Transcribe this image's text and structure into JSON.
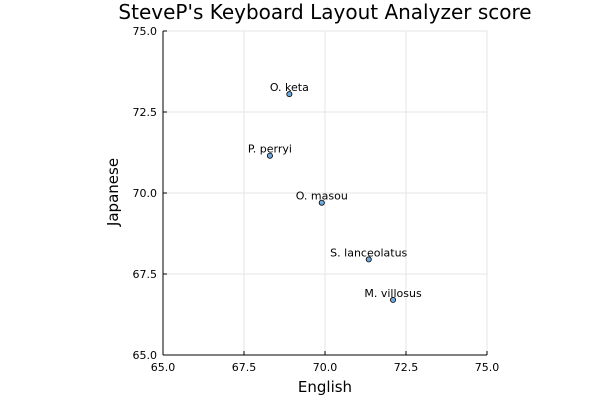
{
  "chart_data": {
    "type": "scatter",
    "title": "SteveP's Keyboard Layout Analyzer score",
    "xlabel": "English",
    "ylabel": "Japanese",
    "xlim": [
      65.0,
      75.0
    ],
    "ylim": [
      65.0,
      75.0
    ],
    "xticks": [
      "65.0",
      "67.5",
      "70.0",
      "72.5",
      "75.0"
    ],
    "yticks": [
      "65.0",
      "67.5",
      "70.0",
      "72.5",
      "75.0"
    ],
    "grid": true,
    "legend": "none",
    "marker_color": "#6fa8dc",
    "marker_edge_color": "#000000",
    "points": [
      {
        "label": "O. keta",
        "x": 68.9,
        "y": 73.05
      },
      {
        "label": "P. perryi",
        "x": 68.3,
        "y": 71.15
      },
      {
        "label": "O. masou",
        "x": 69.9,
        "y": 69.7
      },
      {
        "label": "S. lanceolatus",
        "x": 71.35,
        "y": 67.95
      },
      {
        "label": "M. villosus",
        "x": 72.1,
        "y": 66.7
      }
    ]
  }
}
